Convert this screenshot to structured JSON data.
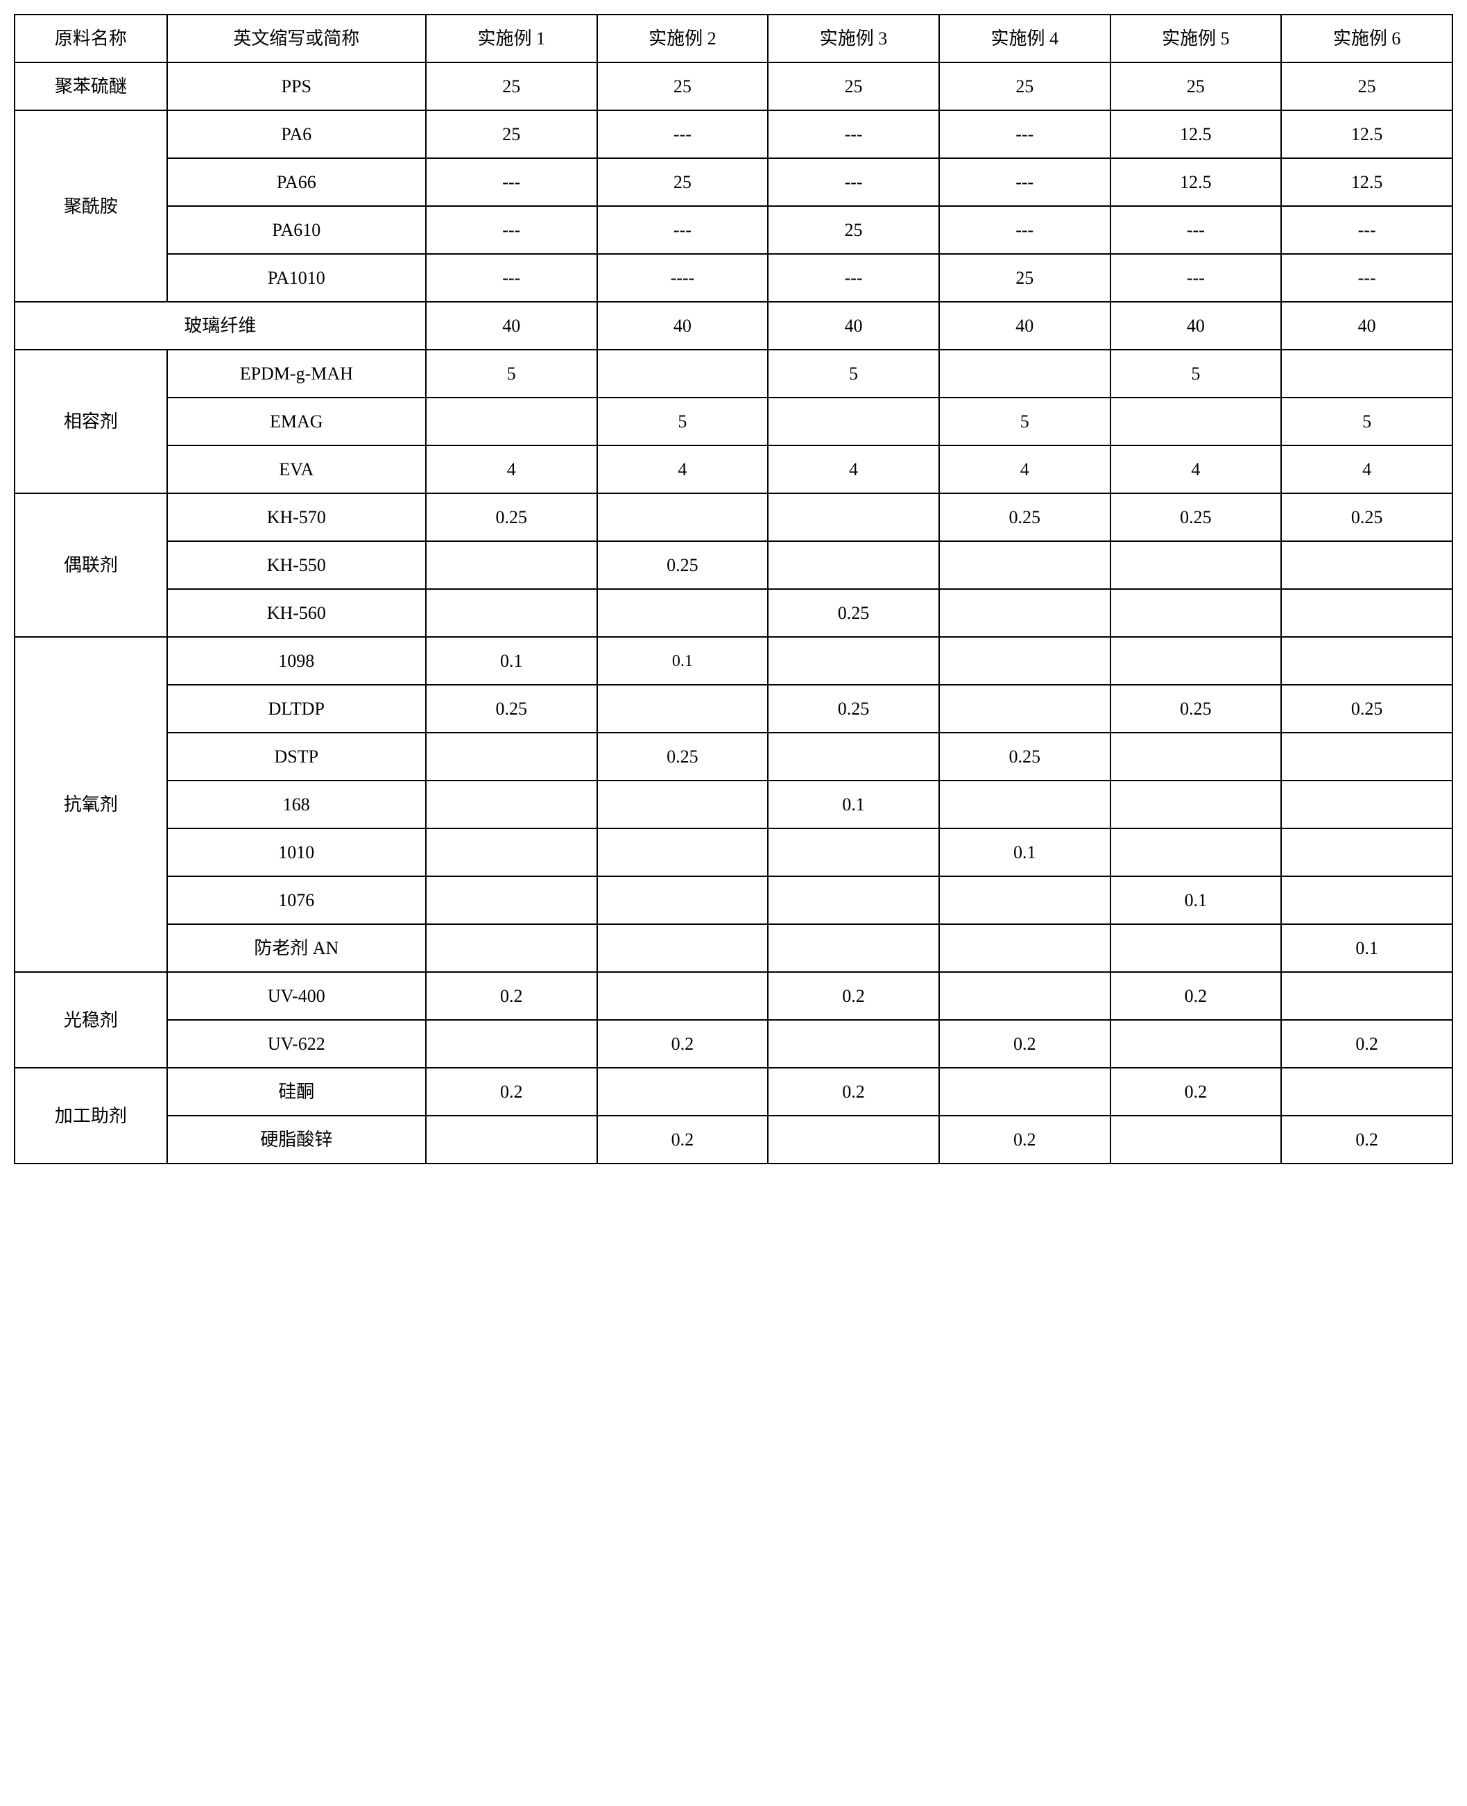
{
  "table": {
    "border_color": "#000000",
    "background_color": "#ffffff",
    "text_color": "#000000",
    "font_family": "SimSun",
    "base_fontsize": 26,
    "columns": [
      "原料名称",
      "英文缩写或简称",
      "实施例 1",
      "实施例 2",
      "实施例 3",
      "实施例 4",
      "实施例 5",
      "实施例 6"
    ],
    "groups": [
      {
        "name": "聚苯硫醚",
        "rows": [
          {
            "abbr": "PPS",
            "vals": [
              "25",
              "25",
              "25",
              "25",
              "25",
              "25"
            ]
          }
        ]
      },
      {
        "name": "聚酰胺",
        "rows": [
          {
            "abbr": "PA6",
            "vals": [
              "25",
              "---",
              "---",
              "---",
              "12.5",
              "12.5"
            ]
          },
          {
            "abbr": "PA66",
            "vals": [
              "---",
              "25",
              "---",
              "---",
              "12.5",
              "12.5"
            ]
          },
          {
            "abbr": "PA610",
            "vals": [
              "---",
              "---",
              "25",
              "---",
              "---",
              "---"
            ]
          },
          {
            "abbr": "PA1010",
            "vals": [
              "---",
              "----",
              "---",
              "25",
              "---",
              "---"
            ]
          }
        ]
      },
      {
        "name": "玻璃纤维",
        "span_name_abbr": true,
        "rows": [
          {
            "abbr": "",
            "vals": [
              "40",
              "40",
              "40",
              "40",
              "40",
              "40"
            ]
          }
        ]
      },
      {
        "name": "相容剂",
        "rows": [
          {
            "abbr": "EPDM-g-MAH",
            "vals": [
              "5",
              "",
              "5",
              "",
              "5",
              ""
            ]
          },
          {
            "abbr": "EMAG",
            "vals": [
              "",
              "5",
              "",
              "5",
              "",
              "5"
            ]
          },
          {
            "abbr": "EVA",
            "vals": [
              "4",
              "4",
              "4",
              "4",
              "4",
              "4"
            ]
          }
        ]
      },
      {
        "name": "偶联剂",
        "rows": [
          {
            "abbr": "KH-570",
            "vals": [
              "0.25",
              "",
              "",
              "0.25",
              "0.25",
              "0.25"
            ]
          },
          {
            "abbr": "KH-550",
            "vals": [
              "",
              "0.25",
              "",
              "",
              "",
              ""
            ]
          },
          {
            "abbr": "KH-560",
            "vals": [
              "",
              "",
              "0.25",
              "",
              "",
              ""
            ]
          }
        ]
      },
      {
        "name": "抗氧剂",
        "rows": [
          {
            "abbr": "1098",
            "vals": [
              "0.1",
              "0.1",
              "",
              "",
              "",
              ""
            ],
            "small_cols": [
              1
            ]
          },
          {
            "abbr": "DLTDP",
            "vals": [
              "0.25",
              "",
              "0.25",
              "",
              "0.25",
              "0.25"
            ]
          },
          {
            "abbr": "DSTP",
            "vals": [
              "",
              "0.25",
              "",
              "0.25",
              "",
              ""
            ]
          },
          {
            "abbr": "168",
            "vals": [
              "",
              "",
              "0.1",
              "",
              "",
              ""
            ]
          },
          {
            "abbr": "1010",
            "vals": [
              "",
              "",
              "",
              "0.1",
              "",
              ""
            ]
          },
          {
            "abbr": "1076",
            "vals": [
              "",
              "",
              "",
              "",
              "0.1",
              ""
            ]
          },
          {
            "abbr": "防老剂 AN",
            "vals": [
              "",
              "",
              "",
              "",
              "",
              "0.1"
            ]
          }
        ]
      },
      {
        "name": "光稳剂",
        "rows": [
          {
            "abbr": "UV-400",
            "vals": [
              "0.2",
              "",
              "0.2",
              "",
              "0.2",
              ""
            ]
          },
          {
            "abbr": "UV-622",
            "vals": [
              "",
              "0.2",
              "",
              "0.2",
              "",
              "0.2"
            ]
          }
        ]
      },
      {
        "name": "加工助剂",
        "rows": [
          {
            "abbr": "硅酮",
            "vals": [
              "0.2",
              "",
              "0.2",
              "",
              "0.2",
              ""
            ]
          },
          {
            "abbr": "硬脂酸锌",
            "vals": [
              "",
              "0.2",
              "",
              "0.2",
              "",
              "0.2"
            ]
          }
        ]
      }
    ]
  }
}
